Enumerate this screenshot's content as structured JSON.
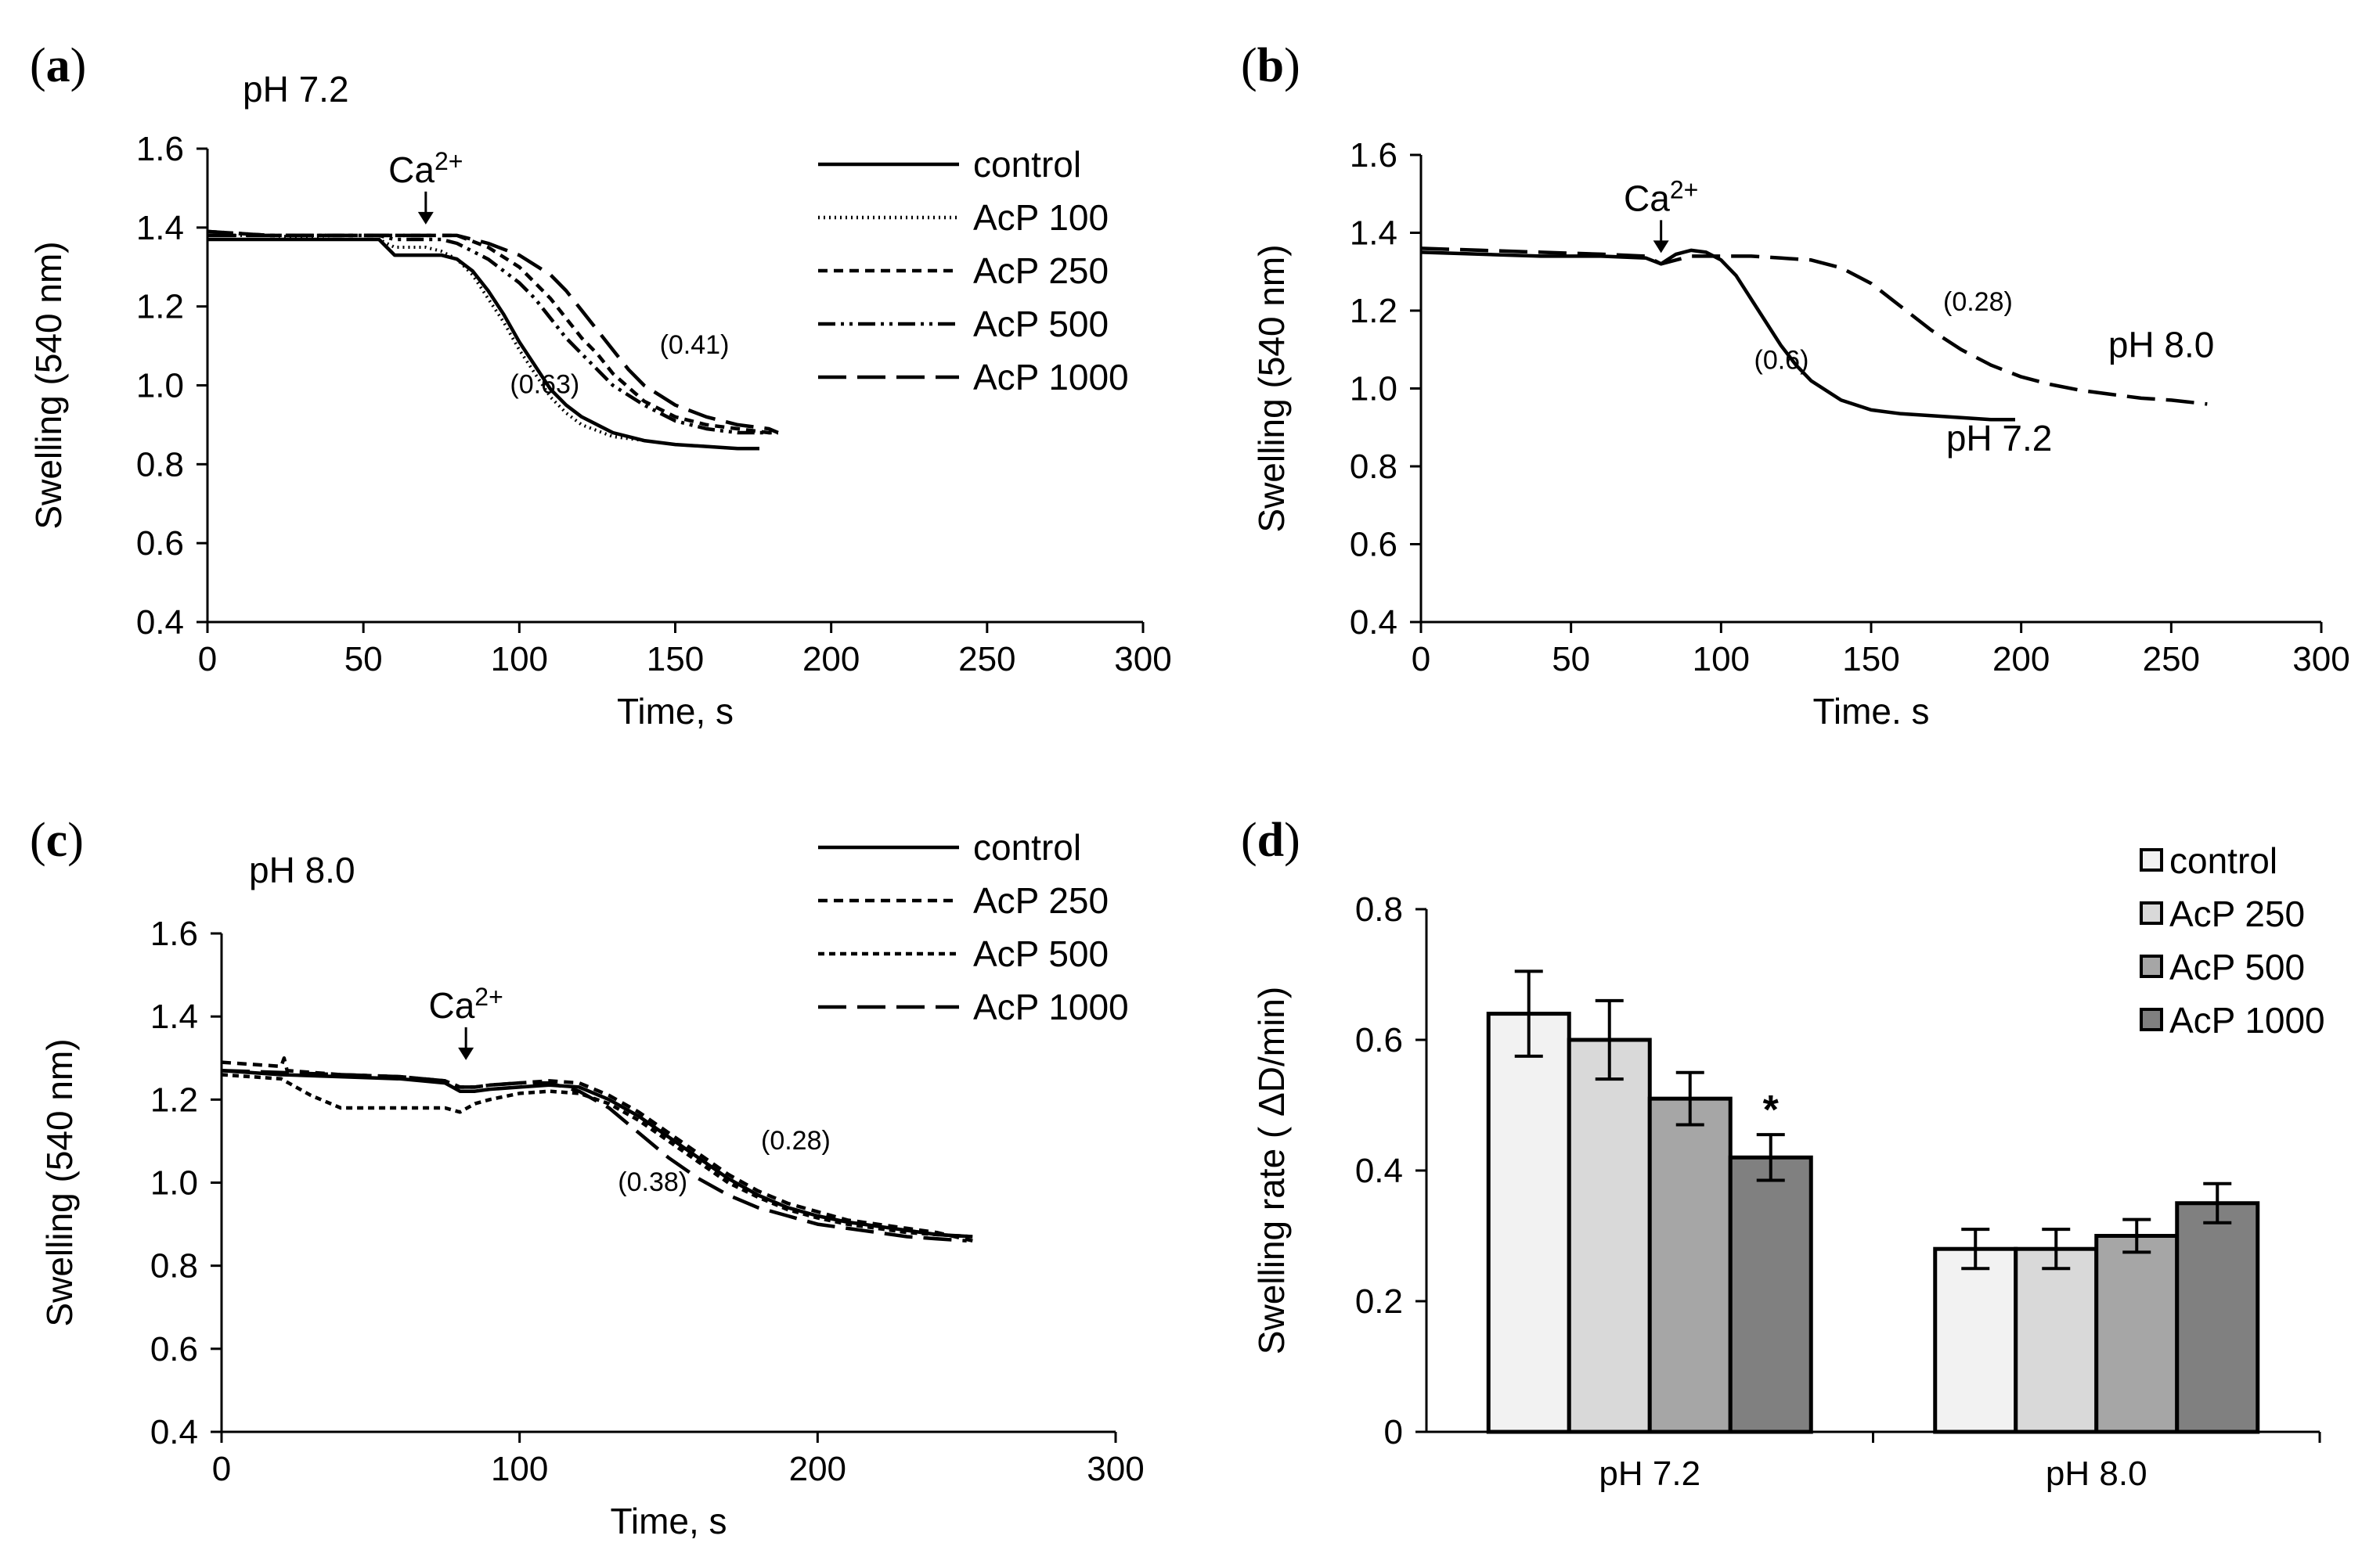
{
  "figure": {
    "panels": [
      {
        "id": "a",
        "label": "a",
        "subtitle": "pH 7.2"
      },
      {
        "id": "b",
        "label": "b",
        "subtitle": ""
      },
      {
        "id": "c",
        "label": "c",
        "subtitle": "pH 8.0"
      },
      {
        "id": "d",
        "label": "d",
        "subtitle": ""
      }
    ]
  },
  "chart_data": [
    {
      "panel": "a",
      "type": "line",
      "title": "pH 7.2",
      "xlabel": "Time, s",
      "ylabel": "Swelling (540 nm)",
      "xlim": [
        0,
        300
      ],
      "ylim": [
        0.4,
        1.6
      ],
      "xticks": [
        "0",
        "50",
        "100",
        "150",
        "200",
        "250",
        "300"
      ],
      "yticks": [
        "0.4",
        "0.6",
        "0.8",
        "1.0",
        "1.2",
        "1.4",
        "1.6"
      ],
      "legend_position": "top-right",
      "annotation": {
        "base": "Ca",
        "sup": "2+",
        "x": 70
      },
      "rate_labels": [
        {
          "text": "(0.63)",
          "x": 97,
          "y": 0.98
        },
        {
          "text": "(0.41)",
          "x": 145,
          "y": 1.08
        }
      ],
      "series": [
        {
          "name": "control",
          "style": "solid",
          "x": [
            0,
            20,
            40,
            55,
            60,
            65,
            70,
            75,
            80,
            85,
            90,
            95,
            100,
            105,
            110,
            115,
            120,
            125,
            130,
            140,
            150,
            160,
            170,
            177
          ],
          "values": [
            1.37,
            1.37,
            1.37,
            1.37,
            1.33,
            1.33,
            1.33,
            1.33,
            1.32,
            1.29,
            1.24,
            1.18,
            1.11,
            1.05,
            0.99,
            0.95,
            0.92,
            0.9,
            0.88,
            0.86,
            0.85,
            0.845,
            0.84,
            0.84
          ]
        },
        {
          "name": "AcP 100",
          "style": "dotted",
          "x": [
            0,
            20,
            40,
            55,
            60,
            65,
            70,
            75,
            80,
            85,
            90,
            95,
            100,
            105,
            110,
            115,
            120,
            130,
            140,
            150,
            160,
            170,
            177
          ],
          "values": [
            1.38,
            1.38,
            1.37,
            1.37,
            1.35,
            1.35,
            1.35,
            1.34,
            1.32,
            1.28,
            1.22,
            1.16,
            1.09,
            1.03,
            0.97,
            0.93,
            0.9,
            0.87,
            0.86,
            0.85,
            0.845,
            0.84,
            0.84
          ]
        },
        {
          "name": "AcP 250",
          "style": "dashed-short",
          "x": [
            0,
            20,
            40,
            55,
            60,
            65,
            70,
            75,
            80,
            90,
            100,
            105,
            110,
            115,
            120,
            125,
            130,
            140,
            150,
            160,
            170,
            180,
            183
          ],
          "values": [
            1.39,
            1.38,
            1.38,
            1.38,
            1.38,
            1.38,
            1.38,
            1.38,
            1.38,
            1.35,
            1.3,
            1.26,
            1.22,
            1.17,
            1.12,
            1.08,
            1.03,
            0.96,
            0.92,
            0.9,
            0.89,
            0.88,
            0.88
          ]
        },
        {
          "name": "AcP 500",
          "style": "dash-dot-dot",
          "x": [
            0,
            20,
            40,
            55,
            60,
            65,
            70,
            75,
            80,
            90,
            100,
            105,
            110,
            115,
            120,
            125,
            130,
            140,
            150,
            160,
            170,
            180,
            183
          ],
          "values": [
            1.39,
            1.38,
            1.38,
            1.38,
            1.37,
            1.37,
            1.37,
            1.37,
            1.36,
            1.32,
            1.26,
            1.22,
            1.17,
            1.12,
            1.08,
            1.04,
            1.0,
            0.95,
            0.91,
            0.89,
            0.88,
            0.88,
            0.88
          ]
        },
        {
          "name": "AcP 1000",
          "style": "dashed-long",
          "x": [
            0,
            20,
            40,
            55,
            60,
            65,
            70,
            75,
            80,
            90,
            100,
            110,
            115,
            120,
            125,
            130,
            135,
            140,
            150,
            160,
            170,
            180,
            183
          ],
          "values": [
            1.38,
            1.38,
            1.38,
            1.38,
            1.38,
            1.38,
            1.38,
            1.38,
            1.38,
            1.36,
            1.33,
            1.28,
            1.24,
            1.19,
            1.14,
            1.09,
            1.04,
            1.0,
            0.95,
            0.92,
            0.9,
            0.89,
            0.88
          ]
        }
      ]
    },
    {
      "panel": "b",
      "type": "line",
      "title": "",
      "xlabel": "Time. s",
      "ylabel": "Swelling (540 nm)",
      "xlim": [
        0,
        300
      ],
      "ylim": [
        0.4,
        1.6
      ],
      "xticks": [
        "0",
        "50",
        "100",
        "150",
        "200",
        "250",
        "300"
      ],
      "yticks": [
        "0.4",
        "0.6",
        "0.8",
        "1.0",
        "1.2",
        "1.4",
        "1.6"
      ],
      "annotation": {
        "base": "Ca",
        "sup": "2+",
        "x": 80
      },
      "rate_labels": [
        {
          "text": "(0.6)",
          "x": 111,
          "y": 1.05
        },
        {
          "text": "(0.28)",
          "x": 174,
          "y": 1.2
        }
      ],
      "line_labels": [
        {
          "text": "pH 7.2",
          "x": 175,
          "y": 0.84
        },
        {
          "text": "pH 8.0",
          "x": 229,
          "y": 1.08
        }
      ],
      "series": [
        {
          "name": "pH 7.2",
          "style": "solid",
          "x": [
            0,
            20,
            40,
            60,
            75,
            80,
            82,
            85,
            90,
            95,
            100,
            105,
            110,
            115,
            120,
            125,
            130,
            140,
            150,
            160,
            170,
            180,
            190,
            198
          ],
          "values": [
            1.35,
            1.345,
            1.34,
            1.34,
            1.335,
            1.32,
            1.33,
            1.345,
            1.355,
            1.35,
            1.33,
            1.29,
            1.23,
            1.17,
            1.11,
            1.06,
            1.02,
            0.97,
            0.945,
            0.935,
            0.93,
            0.925,
            0.92,
            0.92
          ]
        },
        {
          "name": "pH 8.0",
          "style": "dashed-long",
          "x": [
            0,
            20,
            40,
            60,
            75,
            80,
            85,
            90,
            100,
            110,
            120,
            130,
            140,
            150,
            160,
            170,
            180,
            190,
            200,
            210,
            220,
            230,
            240,
            250,
            262
          ],
          "values": [
            1.36,
            1.355,
            1.35,
            1.345,
            1.34,
            1.32,
            1.33,
            1.34,
            1.34,
            1.34,
            1.335,
            1.33,
            1.31,
            1.27,
            1.21,
            1.15,
            1.1,
            1.06,
            1.03,
            1.01,
            0.995,
            0.985,
            0.975,
            0.97,
            0.96
          ]
        }
      ]
    },
    {
      "panel": "c",
      "type": "line",
      "title": "pH 8.0",
      "xlabel": "Time, s",
      "ylabel": "Swelling (540 nm)",
      "xlim": [
        0,
        300
      ],
      "ylim": [
        0.4,
        1.6
      ],
      "xticks": [
        "0",
        "100",
        "200",
        "300"
      ],
      "yticks": [
        "0.4",
        "0.6",
        "0.8",
        "1.0",
        "1.2",
        "1.4",
        "1.6"
      ],
      "legend_position": "top-right",
      "annotation": {
        "base": "Ca",
        "sup": "2+",
        "x": 82
      },
      "rate_labels": [
        {
          "text": "(0.28)",
          "x": 181,
          "y": 1.08
        },
        {
          "text": "(0.38)",
          "x": 133,
          "y": 0.98
        }
      ],
      "series": [
        {
          "name": "control",
          "style": "solid",
          "x": [
            0,
            20,
            40,
            60,
            75,
            80,
            85,
            90,
            100,
            110,
            120,
            130,
            140,
            150,
            160,
            170,
            180,
            190,
            200,
            210,
            220,
            230,
            240,
            252
          ],
          "values": [
            1.27,
            1.26,
            1.255,
            1.25,
            1.24,
            1.22,
            1.22,
            1.225,
            1.23,
            1.235,
            1.23,
            1.2,
            1.16,
            1.11,
            1.06,
            1.01,
            0.97,
            0.94,
            0.92,
            0.905,
            0.895,
            0.885,
            0.875,
            0.87
          ]
        },
        {
          "name": "AcP 250",
          "style": "dashed-short",
          "x": [
            0,
            20,
            21,
            22,
            40,
            60,
            75,
            80,
            85,
            90,
            100,
            110,
            120,
            130,
            140,
            150,
            160,
            170,
            180,
            190,
            200,
            210,
            220,
            230,
            240,
            252
          ],
          "values": [
            1.29,
            1.28,
            1.3,
            1.27,
            1.26,
            1.255,
            1.245,
            1.23,
            1.23,
            1.235,
            1.24,
            1.245,
            1.24,
            1.21,
            1.17,
            1.12,
            1.07,
            1.02,
            0.98,
            0.95,
            0.93,
            0.91,
            0.9,
            0.89,
            0.88,
            0.86
          ]
        },
        {
          "name": "AcP 500",
          "style": "dashed-medium",
          "x": [
            0,
            20,
            30,
            40,
            60,
            75,
            80,
            85,
            90,
            100,
            110,
            120,
            130,
            140,
            150,
            160,
            170,
            180,
            190,
            200,
            210,
            220,
            230,
            240,
            252
          ],
          "values": [
            1.26,
            1.25,
            1.21,
            1.18,
            1.18,
            1.18,
            1.17,
            1.19,
            1.2,
            1.215,
            1.22,
            1.215,
            1.19,
            1.15,
            1.1,
            1.05,
            1.0,
            0.965,
            0.935,
            0.915,
            0.9,
            0.89,
            0.88,
            0.875,
            0.87
          ]
        },
        {
          "name": "AcP 1000",
          "style": "dashed-long",
          "x": [
            0,
            20,
            40,
            60,
            75,
            80,
            85,
            90,
            100,
            110,
            120,
            130,
            140,
            150,
            160,
            170,
            180,
            190,
            200,
            210,
            220,
            230,
            240,
            250
          ],
          "values": [
            1.27,
            1.265,
            1.26,
            1.255,
            1.245,
            1.23,
            1.23,
            1.235,
            1.24,
            1.24,
            1.22,
            1.18,
            1.12,
            1.06,
            1.01,
            0.97,
            0.94,
            0.92,
            0.9,
            0.89,
            0.88,
            0.87,
            0.865,
            0.86
          ]
        }
      ]
    },
    {
      "panel": "d",
      "type": "bar",
      "title": "",
      "xlabel": "",
      "ylabel": "Swelling rate ( ΔD/min)",
      "ylim": [
        0,
        0.8
      ],
      "yticks": [
        "0",
        "0.2",
        "0.4",
        "0.6",
        "0.8"
      ],
      "categories": [
        "pH 7.2",
        "pH 8.0"
      ],
      "legend_position": "top-right",
      "significance": {
        "text": "*",
        "category": "pH 7.2",
        "series": "AcP 1000"
      },
      "series": [
        {
          "name": "control",
          "color": "#f2f2f2",
          "values": [
            0.64,
            0.28
          ],
          "errors": [
            0.065,
            0.03
          ]
        },
        {
          "name": "AcP 250",
          "color": "#d9d9d9",
          "values": [
            0.6,
            0.28
          ],
          "errors": [
            0.06,
            0.03
          ]
        },
        {
          "name": "AcP 500",
          "color": "#a6a6a6",
          "values": [
            0.51,
            0.3
          ],
          "errors": [
            0.04,
            0.025
          ]
        },
        {
          "name": "AcP 1000",
          "color": "#808080",
          "values": [
            0.42,
            0.35
          ],
          "errors": [
            0.035,
            0.03
          ]
        }
      ]
    }
  ]
}
